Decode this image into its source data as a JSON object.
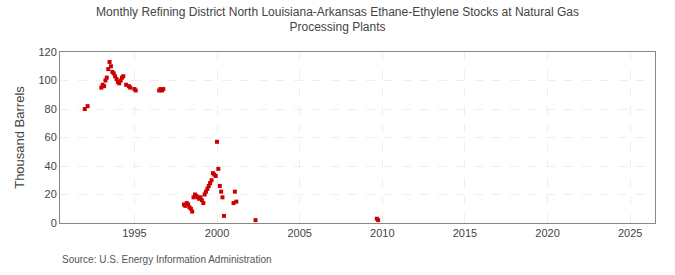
{
  "chart_data": {
    "type": "scatter",
    "title": "Monthly Refining District North Louisiana-Arkansas Ethane-Ethylene Stocks at Natural Gas\nProcessing Plants",
    "ylabel": "Thousand Barrels",
    "source": "Source: U.S. Energy Information Administration",
    "color": "#cc0000",
    "marker": "square",
    "grid": true,
    "xlim": [
      1990.5,
      2026.5
    ],
    "ylim": [
      0,
      120
    ],
    "xticks": [
      1995,
      2000,
      2005,
      2010,
      2015,
      2020,
      2025
    ],
    "yticks": [
      0,
      20,
      40,
      60,
      80,
      100,
      120
    ],
    "x": [
      1992.0,
      1992.17,
      1993.0,
      1993.08,
      1993.17,
      1993.25,
      1993.33,
      1993.42,
      1993.5,
      1993.58,
      1993.67,
      1993.75,
      1993.83,
      1993.92,
      1994.0,
      1994.08,
      1994.17,
      1994.25,
      1994.33,
      1994.5,
      1994.67,
      1994.75,
      1995.0,
      1995.08,
      1996.5,
      1996.58,
      1996.67,
      1996.75,
      1998.0,
      1998.08,
      1998.17,
      1998.25,
      1998.33,
      1998.42,
      1998.5,
      1998.58,
      1998.67,
      1998.75,
      1998.83,
      1998.92,
      1999.0,
      1999.08,
      1999.17,
      1999.25,
      1999.33,
      1999.42,
      1999.5,
      1999.58,
      1999.67,
      1999.75,
      1999.83,
      1999.92,
      2000.0,
      2000.08,
      2000.17,
      2000.25,
      2000.33,
      2000.42,
      2001.0,
      2001.08,
      2001.17,
      2002.33,
      2009.67,
      2009.75
    ],
    "values": [
      80,
      82,
      95,
      97,
      96,
      100,
      102,
      108,
      113,
      110,
      106,
      105,
      103,
      101,
      99,
      98,
      100,
      102,
      103,
      97,
      96,
      95,
      94,
      93,
      93,
      94,
      93,
      94,
      13,
      12,
      14,
      13,
      11,
      10,
      8,
      18,
      20,
      19,
      18,
      17,
      18,
      16,
      14,
      20,
      22,
      24,
      26,
      28,
      30,
      35,
      34,
      33,
      57,
      38,
      26,
      22,
      18,
      5,
      14,
      22,
      15,
      2,
      3,
      2
    ]
  }
}
